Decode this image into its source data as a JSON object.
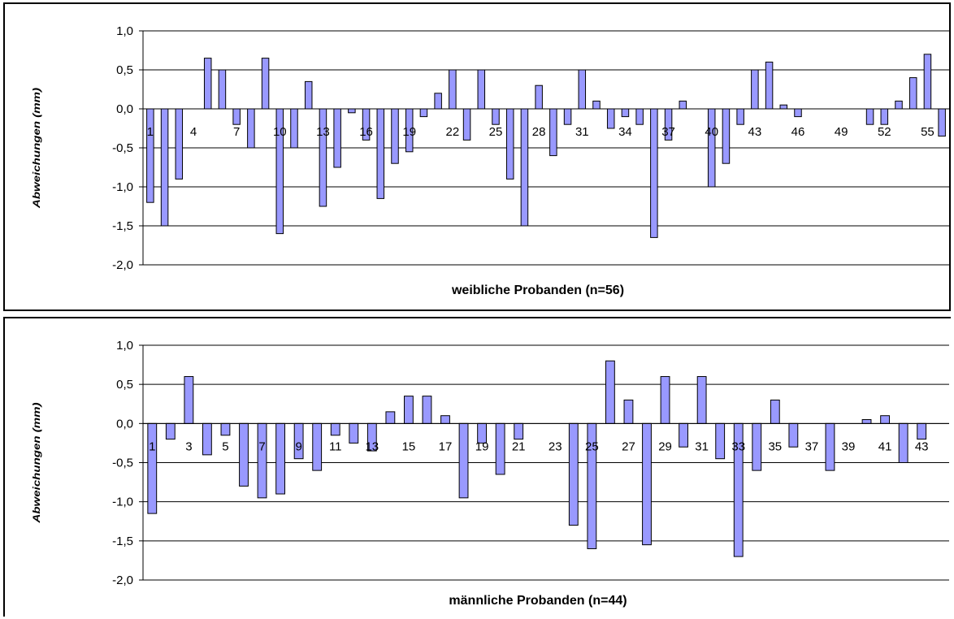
{
  "chart_data": [
    {
      "type": "bar",
      "xlabel": "weibliche Probanden (n=56)",
      "ylabel": "Abweichungen (mm)",
      "ylim": [
        -2.0,
        1.0
      ],
      "yticks": [
        "1,0",
        "0,5",
        "0,0",
        "-0,5",
        "-1,0",
        "-1,5",
        "-2,0"
      ],
      "grid": true,
      "bar_color": "#9999ff",
      "x_tick_labels": [
        "1",
        "4",
        "7",
        "10",
        "13",
        "16",
        "19",
        "22",
        "25",
        "28",
        "31",
        "34",
        "37",
        "40",
        "43",
        "46",
        "49",
        "52",
        "55"
      ],
      "categories": [
        1,
        2,
        3,
        4,
        5,
        6,
        7,
        8,
        9,
        10,
        11,
        12,
        13,
        14,
        15,
        16,
        17,
        18,
        19,
        20,
        21,
        22,
        23,
        24,
        25,
        26,
        27,
        28,
        29,
        30,
        31,
        32,
        33,
        34,
        35,
        36,
        37,
        38,
        39,
        40,
        41,
        42,
        43,
        44,
        45,
        46,
        47,
        48,
        49,
        50,
        51,
        52,
        53,
        54,
        55,
        56
      ],
      "values": [
        -1.2,
        -1.5,
        -0.9,
        0,
        0.65,
        0.5,
        -0.2,
        -0.5,
        0.65,
        -1.6,
        -0.5,
        0.35,
        -1.25,
        -0.75,
        -0.05,
        -0.4,
        -1.15,
        -0.7,
        -0.55,
        -0.1,
        0.2,
        0.5,
        -0.4,
        0.5,
        -0.2,
        -0.9,
        -1.5,
        0.3,
        -0.6,
        -0.2,
        0.5,
        0.1,
        -0.25,
        -0.1,
        -0.2,
        -1.65,
        -0.4,
        0.1,
        0,
        -1.0,
        -0.7,
        -0.2,
        0.5,
        0.6,
        0.05,
        -0.1,
        0,
        0,
        0,
        0,
        -0.2,
        -0.2,
        0.1,
        0.4,
        0.7,
        -0.35
      ]
    },
    {
      "type": "bar",
      "xlabel": "männliche Probanden (n=44)",
      "ylabel": "Abweichungen (mm)",
      "ylim": [
        -2.0,
        1.0
      ],
      "yticks": [
        "1,0",
        "0,5",
        "0,0",
        "-0,5",
        "-1,0",
        "-1,5",
        "-2,0"
      ],
      "grid": true,
      "bar_color": "#9999ff",
      "x_tick_labels": [
        "1",
        "3",
        "5",
        "7",
        "9",
        "11",
        "13",
        "15",
        "17",
        "19",
        "21",
        "23",
        "25",
        "27",
        "29",
        "31",
        "33",
        "35",
        "37",
        "39",
        "41",
        "43"
      ],
      "categories": [
        1,
        2,
        3,
        4,
        5,
        6,
        7,
        8,
        9,
        10,
        11,
        12,
        13,
        14,
        15,
        16,
        17,
        18,
        19,
        20,
        21,
        22,
        23,
        24,
        25,
        26,
        27,
        28,
        29,
        30,
        31,
        32,
        33,
        34,
        35,
        36,
        37,
        38,
        39,
        40,
        41,
        42,
        43,
        44
      ],
      "values": [
        -1.15,
        -0.2,
        0.6,
        -0.4,
        -0.15,
        -0.8,
        -0.95,
        -0.9,
        -0.45,
        -0.6,
        -0.15,
        -0.25,
        -0.35,
        0.15,
        0.35,
        0.35,
        0.1,
        -0.95,
        -0.25,
        -0.65,
        -0.2,
        0,
        0,
        -1.3,
        -1.6,
        0.8,
        0.3,
        -1.55,
        0.6,
        -0.3,
        0.6,
        -0.45,
        -1.7,
        -0.6,
        0.3,
        -0.3,
        0,
        -0.6,
        0,
        0.05,
        0.1,
        -0.5,
        -0.2,
        0
      ]
    }
  ]
}
